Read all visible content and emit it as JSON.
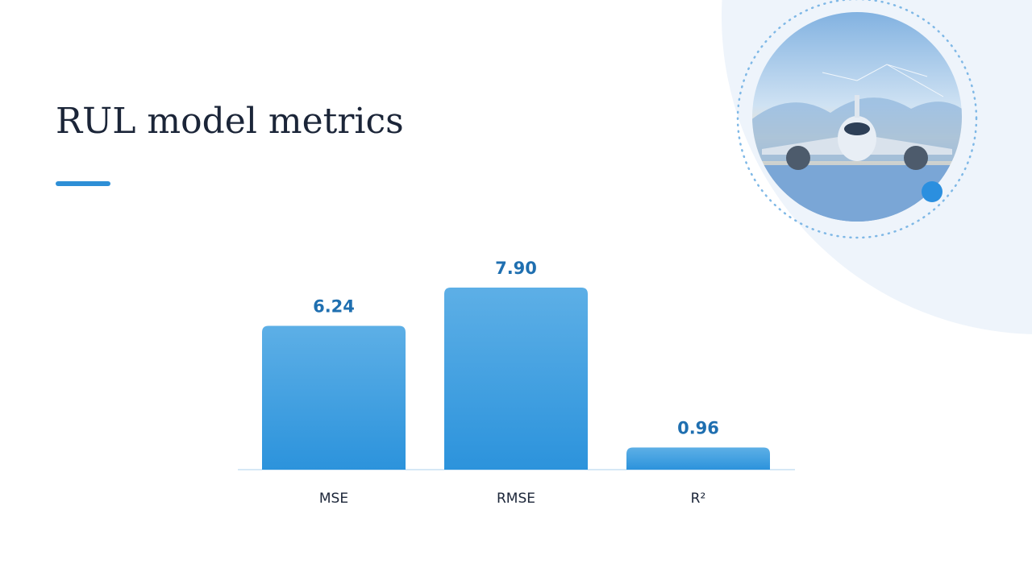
{
  "chart_data": {
    "type": "bar",
    "title": "RUL model metrics",
    "categories": [
      "MSE",
      "RMSE",
      "R²"
    ],
    "values": [
      6.24,
      7.9,
      0.96
    ],
    "value_labels": [
      "6.24",
      "7.90",
      "0.96"
    ],
    "color": "#3a9be0"
  }
}
